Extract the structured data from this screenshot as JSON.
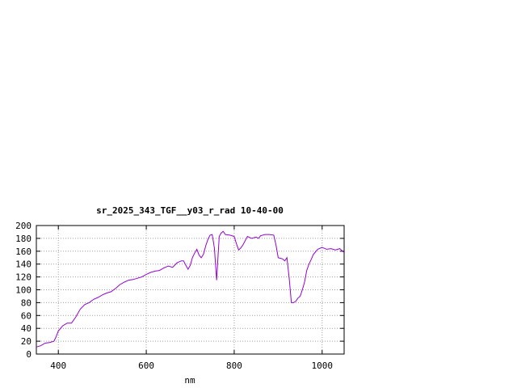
{
  "chart_data": {
    "type": "line",
    "title": "sr_2025_343_TGF__y03_r_rad 10-40-00",
    "xlabel": "nm",
    "ylabel": "",
    "xlim": [
      350,
      1050
    ],
    "ylim": [
      0,
      200
    ],
    "x_ticks": [
      400,
      600,
      800,
      1000
    ],
    "y_ticks": [
      0,
      20,
      40,
      60,
      80,
      100,
      120,
      140,
      160,
      180,
      200
    ],
    "grid": true,
    "line_color": "#9400d3",
    "series": [
      {
        "x": [
          350,
          360,
          370,
          380,
          390,
          395,
          400,
          410,
          420,
          430,
          440,
          450,
          460,
          470,
          480,
          490,
          500,
          510,
          520,
          530,
          540,
          550,
          560,
          570,
          580,
          590,
          600,
          610,
          620,
          630,
          640,
          650,
          660,
          670,
          680,
          685,
          690,
          695,
          700,
          705,
          710,
          715,
          720,
          725,
          730,
          735,
          740,
          745,
          750,
          755,
          760,
          763,
          766,
          770,
          775,
          780,
          790,
          800,
          805,
          810,
          815,
          820,
          830,
          840,
          850,
          855,
          860,
          870,
          880,
          890,
          895,
          900,
          905,
          910,
          915,
          920,
          925,
          930,
          935,
          940,
          945,
          950,
          955,
          960,
          965,
          970,
          975,
          980,
          990,
          1000,
          1010,
          1020,
          1030,
          1040,
          1050
        ],
        "y": [
          11,
          13,
          17,
          18,
          20,
          27,
          36,
          44,
          48,
          48,
          58,
          70,
          77,
          80,
          85,
          88,
          92,
          95,
          97,
          102,
          108,
          112,
          115,
          116,
          118,
          120,
          124,
          127,
          129,
          130,
          134,
          137,
          135,
          142,
          145,
          145,
          138,
          132,
          138,
          150,
          157,
          163,
          154,
          150,
          155,
          168,
          178,
          185,
          186,
          165,
          115,
          150,
          183,
          188,
          191,
          186,
          185,
          183,
          172,
          162,
          165,
          170,
          183,
          180,
          182,
          180,
          184,
          186,
          186,
          185,
          170,
          150,
          149,
          148,
          145,
          150,
          118,
          80,
          80,
          82,
          87,
          90,
          100,
          112,
          130,
          140,
          147,
          155,
          163,
          166,
          163,
          164,
          162,
          164,
          158
        ]
      }
    ]
  }
}
